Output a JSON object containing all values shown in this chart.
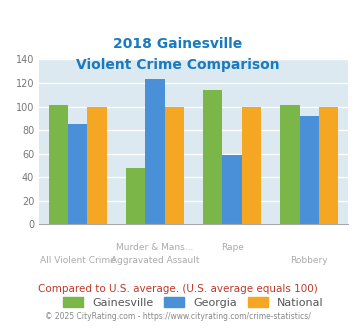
{
  "title_line1": "2018 Gainesville",
  "title_line2": "Violent Crime Comparison",
  "title_color": "#1a7abf",
  "cat_labels_row1": [
    "",
    "Murder & Mans...",
    "Rape",
    ""
  ],
  "cat_labels_row2": [
    "All Violent Crime",
    "Aggravated Assault",
    "",
    "Robbery"
  ],
  "gainesville": [
    101,
    48,
    114,
    101
  ],
  "georgia": [
    85,
    123,
    59,
    92
  ],
  "national": [
    100,
    100,
    100,
    100
  ],
  "gainesville_color": "#7ab648",
  "georgia_color": "#4a90d9",
  "national_color": "#f5a623",
  "ylim": [
    0,
    140
  ],
  "yticks": [
    0,
    20,
    40,
    60,
    80,
    100,
    120,
    140
  ],
  "plot_bg_color": "#dce9f0",
  "fig_bg_color": "#ffffff",
  "grid_color": "#ffffff",
  "footnote1": "Compared to U.S. average. (U.S. average equals 100)",
  "footnote2": "© 2025 CityRating.com - https://www.cityrating.com/crime-statistics/",
  "footnote1_color": "#c0392b",
  "footnote2_color": "#888888",
  "legend_labels": [
    "Gainesville",
    "Georgia",
    "National"
  ],
  "xlabel_color": "#aaaaaa"
}
